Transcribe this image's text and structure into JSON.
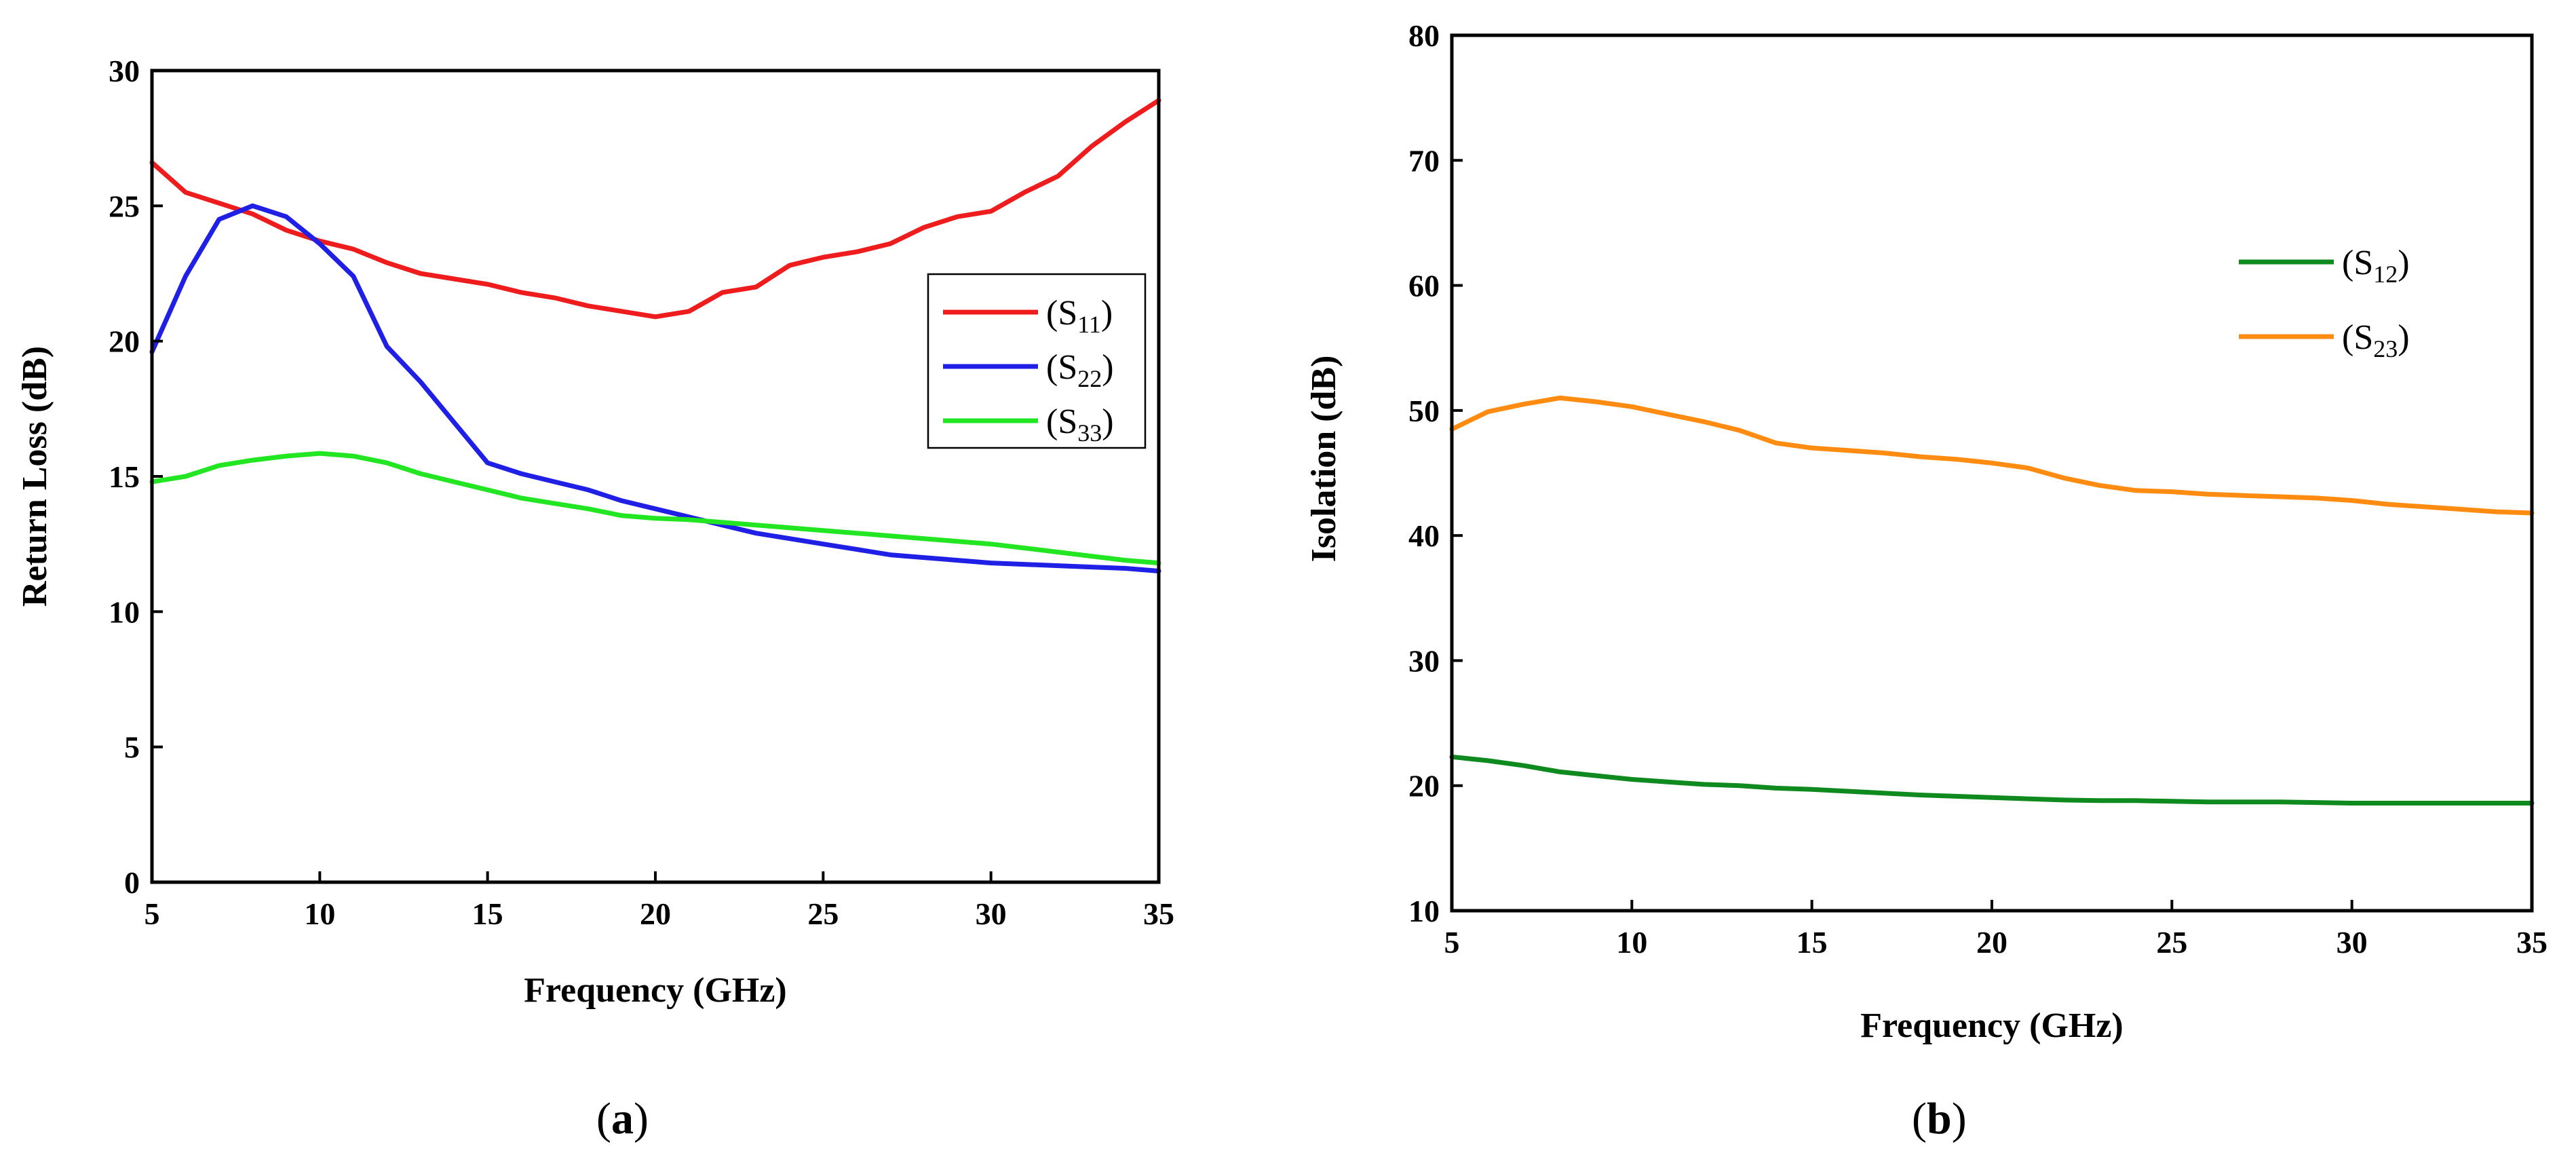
{
  "chart_data": [
    {
      "id": "a",
      "type": "line",
      "caption": {
        "open": "(",
        "letter": "a",
        "close": ")"
      },
      "xlabel": "Frequency (GHz)",
      "ylabel": "Return Loss (dB)",
      "xlim": [
        5,
        35
      ],
      "ylim": [
        0,
        30
      ],
      "xticks": [
        5,
        10,
        15,
        20,
        25,
        30,
        35
      ],
      "yticks": [
        0,
        5,
        10,
        15,
        20,
        25,
        30
      ],
      "legend": {
        "position": "right-middle",
        "boxed": true
      },
      "series": [
        {
          "name": "(S11)",
          "label_main": "(S",
          "label_sub": "11",
          "label_end": ")",
          "color": "#ee1c1c",
          "x": [
            5,
            6,
            7,
            8,
            9,
            10,
            11,
            12,
            13,
            14,
            15,
            16,
            17,
            18,
            19,
            20,
            21,
            22,
            23,
            24,
            25,
            26,
            27,
            28,
            29,
            30,
            31,
            32,
            33,
            34,
            35
          ],
          "y": [
            26.6,
            25.5,
            25.1,
            24.7,
            24.1,
            23.7,
            23.4,
            22.9,
            22.5,
            22.3,
            22.1,
            21.8,
            21.6,
            21.3,
            21.1,
            20.9,
            21.1,
            21.8,
            22.0,
            22.8,
            23.1,
            23.3,
            23.6,
            24.2,
            24.6,
            24.8,
            25.5,
            26.1,
            27.2,
            28.1,
            28.9
          ]
        },
        {
          "name": "(S22)",
          "label_main": "(S",
          "label_sub": "22",
          "label_end": ")",
          "color": "#1f1fe6",
          "x": [
            5,
            6,
            7,
            8,
            9,
            10,
            11,
            12,
            13,
            14,
            15,
            16,
            17,
            18,
            19,
            20,
            21,
            22,
            23,
            24,
            25,
            26,
            27,
            28,
            29,
            30,
            31,
            32,
            33,
            34,
            35
          ],
          "y": [
            19.6,
            22.4,
            24.5,
            25.0,
            24.6,
            23.6,
            22.4,
            19.8,
            18.5,
            17.0,
            15.5,
            15.1,
            14.8,
            14.5,
            14.1,
            13.8,
            13.5,
            13.2,
            12.9,
            12.7,
            12.5,
            12.3,
            12.1,
            12.0,
            11.9,
            11.8,
            11.75,
            11.7,
            11.65,
            11.6,
            11.5
          ]
        },
        {
          "name": "(S33)",
          "label_main": "(S",
          "label_sub": "33",
          "label_end": ")",
          "color": "#22e622",
          "x": [
            5,
            6,
            7,
            8,
            9,
            10,
            11,
            12,
            13,
            14,
            15,
            16,
            17,
            18,
            19,
            20,
            21,
            22,
            23,
            24,
            25,
            26,
            27,
            28,
            29,
            30,
            31,
            32,
            33,
            34,
            35
          ],
          "y": [
            14.8,
            15.0,
            15.4,
            15.6,
            15.75,
            15.85,
            15.75,
            15.5,
            15.1,
            14.8,
            14.5,
            14.2,
            14.0,
            13.8,
            13.55,
            13.45,
            13.4,
            13.3,
            13.2,
            13.1,
            13.0,
            12.9,
            12.8,
            12.7,
            12.6,
            12.5,
            12.35,
            12.2,
            12.05,
            11.9,
            11.8
          ]
        }
      ]
    },
    {
      "id": "b",
      "type": "line",
      "caption": {
        "open": "(",
        "letter": "b",
        "close": ")"
      },
      "xlabel": "Frequency (GHz)",
      "ylabel": "Isolation (dB)",
      "xlim": [
        5,
        35
      ],
      "ylim": [
        10,
        80
      ],
      "xticks": [
        5,
        10,
        15,
        20,
        25,
        30,
        35
      ],
      "yticks": [
        10,
        20,
        30,
        40,
        50,
        60,
        70,
        80
      ],
      "legend": {
        "position": "upper-right",
        "boxed": false
      },
      "series": [
        {
          "name": "(S12)",
          "label_main": "(S",
          "label_sub": "12",
          "label_end": ")",
          "color": "#0f8a1e",
          "x": [
            5,
            6,
            7,
            8,
            9,
            10,
            11,
            12,
            13,
            14,
            15,
            16,
            17,
            18,
            19,
            20,
            21,
            22,
            23,
            24,
            25,
            26,
            27,
            28,
            29,
            30,
            31,
            32,
            33,
            34,
            35
          ],
          "y": [
            22.3,
            22.0,
            21.6,
            21.1,
            20.8,
            20.5,
            20.3,
            20.1,
            20.0,
            19.8,
            19.7,
            19.55,
            19.4,
            19.25,
            19.15,
            19.05,
            18.95,
            18.85,
            18.8,
            18.8,
            18.75,
            18.7,
            18.7,
            18.7,
            18.65,
            18.6,
            18.6,
            18.6,
            18.6,
            18.6,
            18.6
          ]
        },
        {
          "name": "(S23)",
          "label_main": "(S",
          "label_sub": "23",
          "label_end": ")",
          "color": "#ff8c10",
          "x": [
            5,
            6,
            7,
            8,
            9,
            10,
            11,
            12,
            13,
            14,
            15,
            16,
            17,
            18,
            19,
            20,
            21,
            22,
            23,
            24,
            25,
            26,
            27,
            28,
            29,
            30,
            31,
            32,
            33,
            34,
            35
          ],
          "y": [
            48.5,
            49.9,
            50.5,
            51.0,
            50.7,
            50.3,
            49.7,
            49.1,
            48.4,
            47.4,
            47.0,
            46.8,
            46.6,
            46.3,
            46.1,
            45.8,
            45.4,
            44.6,
            44.0,
            43.6,
            43.5,
            43.3,
            43.2,
            43.1,
            43.0,
            42.8,
            42.5,
            42.3,
            42.1,
            41.9,
            41.8
          ]
        }
      ]
    }
  ]
}
